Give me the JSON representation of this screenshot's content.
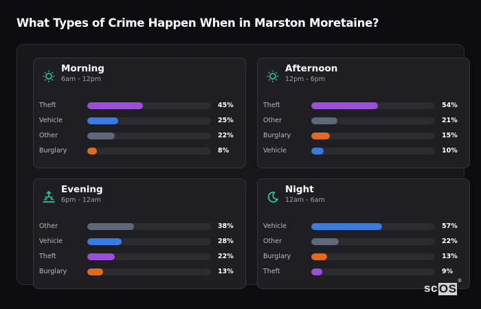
{
  "page": {
    "title": "What Types of Crime Happen When in Marston Moretaine?"
  },
  "colors": {
    "accent_icon": "#2bc49a",
    "Theft": "#9b4fd8",
    "Vehicle": "#3a7be0",
    "Other": "#5f6878",
    "Burglary": "#e06a1e"
  },
  "cards": [
    {
      "title": "Morning",
      "subtitle": "6am - 12pm",
      "icon": "sun-icon",
      "rows": [
        {
          "label": "Theft",
          "value": 45,
          "display": "45%"
        },
        {
          "label": "Vehicle",
          "value": 25,
          "display": "25%"
        },
        {
          "label": "Other",
          "value": 22,
          "display": "22%"
        },
        {
          "label": "Burglary",
          "value": 8,
          "display": "8%"
        }
      ]
    },
    {
      "title": "Afternoon",
      "subtitle": "12pm - 6pm",
      "icon": "sun-icon",
      "rows": [
        {
          "label": "Theft",
          "value": 54,
          "display": "54%"
        },
        {
          "label": "Other",
          "value": 21,
          "display": "21%"
        },
        {
          "label": "Burglary",
          "value": 15,
          "display": "15%"
        },
        {
          "label": "Vehicle",
          "value": 10,
          "display": "10%"
        }
      ]
    },
    {
      "title": "Evening",
      "subtitle": "6pm - 12am",
      "icon": "sunset-icon",
      "rows": [
        {
          "label": "Other",
          "value": 38,
          "display": "38%"
        },
        {
          "label": "Vehicle",
          "value": 28,
          "display": "28%"
        },
        {
          "label": "Theft",
          "value": 22,
          "display": "22%"
        },
        {
          "label": "Burglary",
          "value": 13,
          "display": "13%"
        }
      ]
    },
    {
      "title": "Night",
      "subtitle": "12am - 6am",
      "icon": "moon-icon",
      "rows": [
        {
          "label": "Vehicle",
          "value": 57,
          "display": "57%"
        },
        {
          "label": "Other",
          "value": 22,
          "display": "22%"
        },
        {
          "label": "Burglary",
          "value": 13,
          "display": "13%"
        },
        {
          "label": "Theft",
          "value": 9,
          "display": "9%"
        }
      ]
    }
  ],
  "logo": {
    "sc": "sc",
    "os": "OS",
    "reg": "®"
  },
  "chart_data": [
    {
      "type": "bar",
      "title": "Morning",
      "subtitle": "6am - 12pm",
      "orientation": "horizontal",
      "categories": [
        "Theft",
        "Vehicle",
        "Other",
        "Burglary"
      ],
      "values": [
        45,
        25,
        22,
        8
      ],
      "unit": "%",
      "xlim": [
        0,
        100
      ]
    },
    {
      "type": "bar",
      "title": "Afternoon",
      "subtitle": "12pm - 6pm",
      "orientation": "horizontal",
      "categories": [
        "Theft",
        "Other",
        "Burglary",
        "Vehicle"
      ],
      "values": [
        54,
        21,
        15,
        10
      ],
      "unit": "%",
      "xlim": [
        0,
        100
      ]
    },
    {
      "type": "bar",
      "title": "Evening",
      "subtitle": "6pm - 12am",
      "orientation": "horizontal",
      "categories": [
        "Other",
        "Vehicle",
        "Theft",
        "Burglary"
      ],
      "values": [
        38,
        28,
        22,
        13
      ],
      "unit": "%",
      "xlim": [
        0,
        100
      ]
    },
    {
      "type": "bar",
      "title": "Night",
      "subtitle": "12am - 6am",
      "orientation": "horizontal",
      "categories": [
        "Vehicle",
        "Other",
        "Burglary",
        "Theft"
      ],
      "values": [
        57,
        22,
        13,
        9
      ],
      "unit": "%",
      "xlim": [
        0,
        100
      ]
    }
  ]
}
